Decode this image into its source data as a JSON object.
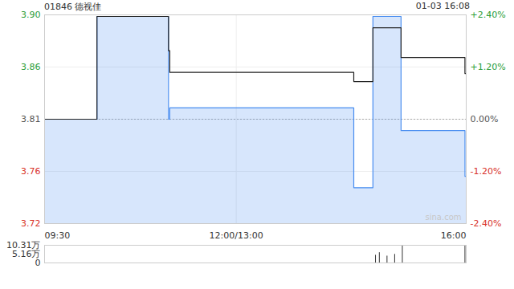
{
  "chart_data": [
    {
      "type": "line",
      "title": "01846 德视佳",
      "subtitle": "01-03 16:08",
      "x": [
        0,
        41,
        97,
        98,
        242,
        257,
        279,
        329,
        330
      ],
      "series": [
        {
          "type": "area",
          "color": "#4a8ef0",
          "values": [
            3.81,
            3.9,
            3.81,
            3.82,
            3.75,
            3.9,
            3.8,
            3.76,
            3.76
          ]
        },
        {
          "type": "line",
          "color": "#222222",
          "values": [
            3.81,
            3.9,
            3.87,
            3.851,
            3.843,
            3.89,
            3.864,
            3.85,
            3.85
          ]
        }
      ],
      "xlim": [
        0,
        330
      ],
      "xticks": [
        {
          "value": 0,
          "label": "09:30"
        },
        {
          "value": 150,
          "label": "12:00/13:00"
        },
        {
          "value": 330,
          "label": "16:00"
        }
      ],
      "ylim": [
        3.7186,
        3.9014
      ],
      "yticks": [
        {
          "value": 3.9014,
          "label": "3.90"
        },
        {
          "value": 3.8557,
          "label": "3.86"
        },
        3.81,
        {
          "value": 3.7643,
          "label": "3.76"
        },
        {
          "value": 3.7186,
          "label": "3.72"
        }
      ],
      "y2lim": [
        -2.4,
        2.4
      ],
      "y2ticks": [
        {
          "value": 2.4,
          "label": "+2.40%"
        },
        {
          "value": 1.2,
          "label": "+1.20%"
        },
        {
          "value": 0,
          "label": "0.00%"
        },
        {
          "value": -1.2,
          "label": "-1.20%"
        },
        {
          "value": -2.4,
          "label": "-2.40%"
        }
      ],
      "grid": true,
      "line_style": "step",
      "annotations": [
        "sina.com"
      ]
    },
    {
      "type": "bar",
      "x": [
        259,
        262,
        268,
        274,
        280,
        329
      ],
      "values": [
        45000,
        60000,
        40000,
        50000,
        103100,
        100000
      ],
      "color": "#333333",
      "xlim": [
        0,
        330
      ],
      "ylim": [
        0,
        103100
      ],
      "yticks": [
        {
          "value": 103100,
          "label": "10.31万"
        },
        {
          "value": 51550,
          "label": "5.16万"
        },
        0
      ],
      "tick_labels": "y"
    }
  ]
}
